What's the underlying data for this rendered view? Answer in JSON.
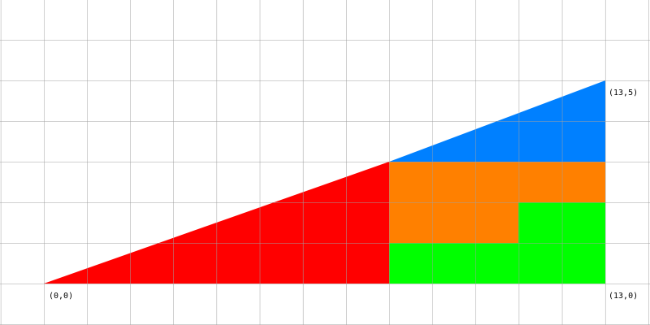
{
  "labels": {
    "origin": "(0,0)",
    "top_right": "(13,5)",
    "bottom_right": "(13,0)"
  }
}
